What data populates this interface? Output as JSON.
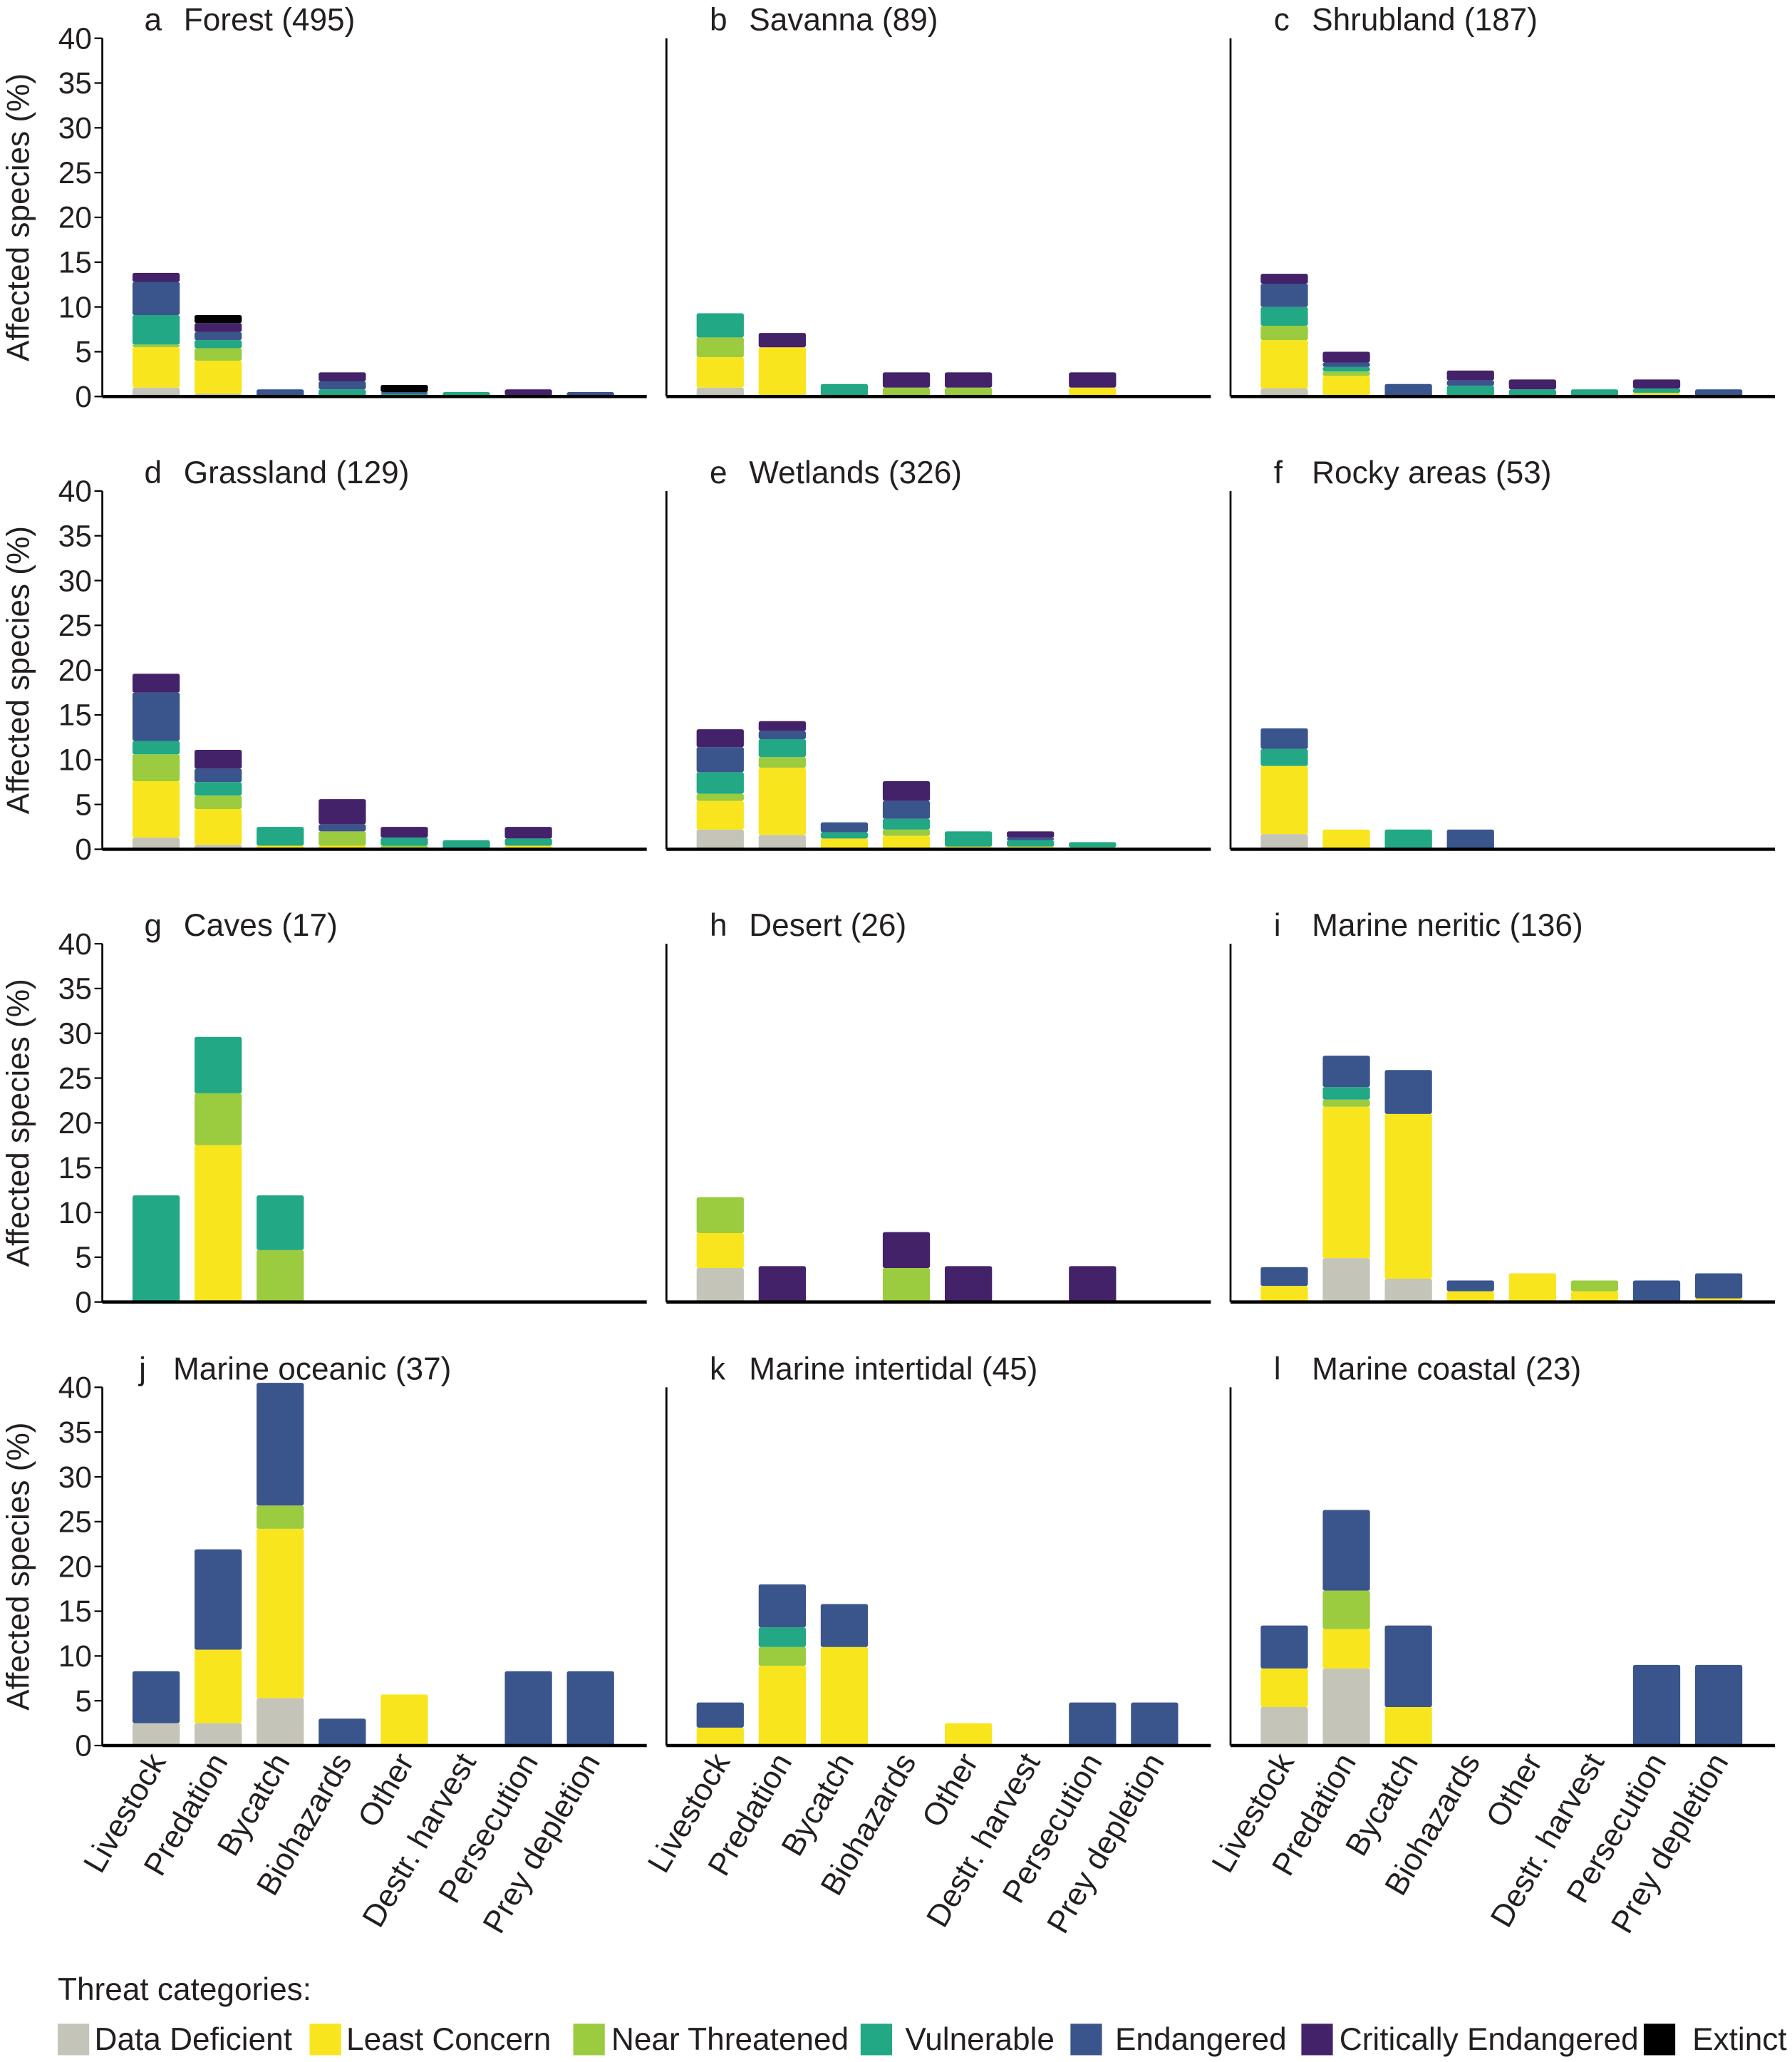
{
  "chart_data": {
    "type": "bar",
    "stacked": true,
    "ylabel": "Affected species (%)",
    "ylim": [
      0,
      40
    ],
    "yticks": [
      0,
      5,
      10,
      15,
      20,
      25,
      30,
      35,
      40
    ],
    "grid": false,
    "categories": [
      "Livestock",
      "Predation",
      "Bycatch",
      "Biohazards",
      "Other",
      "Destr. harvest",
      "Persecution",
      "Prey depletion"
    ],
    "series_names": [
      "Data Deficient",
      "Least Concern",
      "Near Threatened",
      "Vulnerable",
      "Endangered",
      "Critically Endangered",
      "Extinct"
    ],
    "colors": [
      "#c4c4b8",
      "#f9e51e",
      "#9bcb3f",
      "#22a884",
      "#3a548c",
      "#44226a",
      "#000000"
    ],
    "legend": {
      "title": "Threat categories:",
      "placement": "bottom"
    },
    "panels": [
      {
        "letter": "a",
        "title": "Forest (495)",
        "stacks": [
          [
            1,
            4.5,
            0.3,
            3.3,
            3.7,
            1,
            0
          ],
          [
            0.3,
            3.7,
            1.4,
            0.9,
            0.9,
            1,
            0.9
          ],
          [
            0,
            0,
            0,
            0,
            0.8,
            0,
            0
          ],
          [
            0,
            0,
            0,
            0.8,
            0.9,
            1,
            0
          ],
          [
            0,
            0,
            0,
            0.3,
            0.2,
            0,
            0.8
          ],
          [
            0,
            0,
            0,
            0.5,
            0,
            0,
            0
          ],
          [
            0,
            0.1,
            0,
            0,
            0,
            0.7,
            0
          ],
          [
            0,
            0,
            0,
            0,
            0.5,
            0,
            0
          ]
        ]
      },
      {
        "letter": "b",
        "title": "Savanna (89)",
        "stacks": [
          [
            1,
            3.4,
            2.2,
            2.7,
            0,
            0,
            0
          ],
          [
            0,
            5.5,
            0,
            0,
            0,
            1.6,
            0
          ],
          [
            0,
            0,
            0,
            1.4,
            0,
            0,
            0
          ],
          [
            0,
            0,
            1,
            0,
            0,
            1.7,
            0
          ],
          [
            0,
            0,
            1,
            0,
            0,
            1.7,
            0
          ],
          [
            0,
            0,
            0,
            0,
            0,
            0,
            0
          ],
          [
            0,
            1,
            0,
            0,
            0,
            1.7,
            0
          ],
          [
            0,
            0,
            0,
            0,
            0,
            0,
            0
          ]
        ]
      },
      {
        "letter": "c",
        "title": "Shrubland (187)",
        "stacks": [
          [
            0.9,
            5.4,
            1.6,
            2.1,
            2.6,
            1.1,
            0
          ],
          [
            0.1,
            2.2,
            0.5,
            0.5,
            0.5,
            1.2,
            0
          ],
          [
            0,
            0,
            0,
            0,
            1.4,
            0,
            0
          ],
          [
            0,
            0,
            0,
            1.2,
            0.6,
            1.1,
            0
          ],
          [
            0,
            0,
            0,
            0.8,
            0,
            1.1,
            0
          ],
          [
            0,
            0,
            0,
            0.8,
            0,
            0,
            0
          ],
          [
            0,
            0.4,
            0,
            0.5,
            0,
            1,
            0
          ],
          [
            0,
            0,
            0,
            0,
            0.8,
            0,
            0
          ]
        ]
      },
      {
        "letter": "d",
        "title": "Grassland (129)",
        "stacks": [
          [
            1.3,
            6.3,
            3,
            1.5,
            5.4,
            2.1,
            0
          ],
          [
            0.5,
            4,
            1.5,
            1.5,
            1.5,
            2.1,
            0
          ],
          [
            0,
            0.4,
            0,
            2.1,
            0,
            0,
            0
          ],
          [
            0,
            0.4,
            1.6,
            0,
            0.8,
            2.8,
            0
          ],
          [
            0,
            0,
            0.4,
            0.9,
            0,
            1.2,
            0
          ],
          [
            0,
            0,
            0,
            1,
            0,
            0,
            0
          ],
          [
            0,
            0.4,
            0,
            0.8,
            0,
            1.3,
            0
          ],
          [
            0,
            0,
            0,
            0,
            0,
            0,
            0
          ]
        ]
      },
      {
        "letter": "e",
        "title": "Wetlands (326)",
        "stacks": [
          [
            2.2,
            3.2,
            0.8,
            2.4,
            2.8,
            2,
            0
          ],
          [
            1.6,
            7.5,
            1.2,
            2,
            0.9,
            1.1,
            0
          ],
          [
            0,
            1.2,
            0,
            0.7,
            1.1,
            0,
            0
          ],
          [
            0,
            1.5,
            0.7,
            1.2,
            2,
            2.2,
            0
          ],
          [
            0,
            0.3,
            0,
            1.7,
            0,
            0,
            0
          ],
          [
            0,
            0.3,
            0,
            0.7,
            0.3,
            0.7,
            0
          ],
          [
            0,
            0.2,
            0,
            0.6,
            0,
            0,
            0
          ],
          [
            0,
            0,
            0,
            0,
            0,
            0,
            0
          ]
        ]
      },
      {
        "letter": "f",
        "title": "Rocky areas (53)",
        "stacks": [
          [
            1.7,
            7.6,
            0,
            1.9,
            2.3,
            0,
            0
          ],
          [
            0,
            2.2,
            0,
            0,
            0,
            0,
            0
          ],
          [
            0,
            0,
            0,
            2.2,
            0,
            0,
            0
          ],
          [
            0,
            0,
            0,
            0,
            2.2,
            0,
            0
          ],
          [
            0,
            0,
            0,
            0,
            0,
            0,
            0
          ],
          [
            0,
            0,
            0,
            0,
            0,
            0,
            0
          ],
          [
            0,
            0,
            0,
            0,
            0,
            0,
            0
          ],
          [
            0,
            0,
            0,
            0,
            0,
            0,
            0
          ]
        ]
      },
      {
        "letter": "g",
        "title": "Caves (17)",
        "stacks": [
          [
            0,
            0,
            0,
            11.9,
            0,
            0,
            0
          ],
          [
            0,
            17.5,
            5.8,
            6.3,
            0,
            0,
            0
          ],
          [
            0,
            0,
            5.8,
            6.1,
            0,
            0,
            0
          ],
          [
            0,
            0,
            0,
            0,
            0,
            0,
            0
          ],
          [
            0,
            0,
            0,
            0,
            0,
            0,
            0
          ],
          [
            0,
            0,
            0,
            0,
            0,
            0,
            0
          ],
          [
            0,
            0,
            0,
            0,
            0,
            0,
            0
          ],
          [
            0,
            0,
            0,
            0,
            0,
            0,
            0
          ]
        ]
      },
      {
        "letter": "h",
        "title": "Desert (26)",
        "stacks": [
          [
            3.8,
            3.9,
            4,
            0,
            0,
            0,
            0
          ],
          [
            0,
            0,
            0,
            0,
            0,
            4,
            0
          ],
          [
            0,
            0,
            0,
            0,
            0,
            0,
            0
          ],
          [
            0,
            0,
            3.8,
            0,
            0,
            4,
            0
          ],
          [
            0,
            0,
            0,
            0,
            0,
            4,
            0
          ],
          [
            0,
            0,
            0,
            0,
            0,
            0,
            0
          ],
          [
            0,
            0,
            0,
            0,
            0,
            4,
            0
          ],
          [
            0,
            0,
            0,
            0,
            0,
            0,
            0
          ]
        ]
      },
      {
        "letter": "i",
        "title": "Marine neritic (136)",
        "stacks": [
          [
            0,
            1.8,
            0,
            0,
            2.1,
            0,
            0
          ],
          [
            4.9,
            16.9,
            0.8,
            1.4,
            3.5,
            0,
            0
          ],
          [
            2.6,
            18.4,
            0,
            0,
            4.9,
            0,
            0
          ],
          [
            0,
            1.2,
            0,
            0,
            1.2,
            0,
            0
          ],
          [
            0,
            3.2,
            0,
            0,
            0,
            0,
            0
          ],
          [
            0,
            1.2,
            1.2,
            0,
            0,
            0,
            0
          ],
          [
            0,
            0,
            0,
            0,
            2.4,
            0,
            0
          ],
          [
            0,
            0.4,
            0,
            0,
            2.8,
            0,
            0
          ]
        ]
      },
      {
        "letter": "j",
        "title": "Marine oceanic (37)",
        "stacks": [
          [
            2.5,
            0,
            0,
            0,
            5.8,
            0,
            0
          ],
          [
            2.5,
            8.2,
            0,
            0,
            11.2,
            0,
            0
          ],
          [
            5.3,
            18.9,
            2.6,
            0,
            13.7,
            0,
            0
          ],
          [
            0,
            0,
            0,
            0,
            3,
            0,
            0
          ],
          [
            0,
            5.7,
            0,
            0,
            0,
            0,
            0
          ],
          [
            0,
            0,
            0,
            0,
            0,
            0,
            0
          ],
          [
            0,
            0,
            0,
            0,
            8.3,
            0,
            0
          ],
          [
            0,
            0,
            0,
            0,
            8.3,
            0,
            0
          ]
        ]
      },
      {
        "letter": "k",
        "title": "Marine intertidal (45)",
        "stacks": [
          [
            0,
            2,
            0,
            0,
            2.8,
            0,
            0
          ],
          [
            0,
            8.9,
            2.1,
            2.2,
            4.8,
            0,
            0
          ],
          [
            0,
            11,
            0,
            0,
            4.8,
            0,
            0
          ],
          [
            0,
            0,
            0,
            0,
            0,
            0,
            0
          ],
          [
            0,
            2.5,
            0,
            0,
            0,
            0,
            0
          ],
          [
            0,
            0,
            0,
            0,
            0,
            0,
            0
          ],
          [
            0,
            0,
            0,
            0,
            4.8,
            0,
            0
          ],
          [
            0,
            0,
            0,
            0,
            4.8,
            0,
            0
          ]
        ]
      },
      {
        "letter": "l",
        "title": "Marine coastal (23)",
        "stacks": [
          [
            4.3,
            4.3,
            0,
            0,
            4.8,
            0,
            0
          ],
          [
            8.6,
            4.4,
            4.3,
            0,
            9,
            0,
            0
          ],
          [
            0,
            4.3,
            0,
            0,
            9.1,
            0,
            0
          ],
          [
            0,
            0,
            0,
            0,
            0,
            0,
            0
          ],
          [
            0,
            0,
            0,
            0,
            0,
            0,
            0
          ],
          [
            0,
            0,
            0,
            0,
            0,
            0,
            0
          ],
          [
            0,
            0,
            0,
            0,
            9,
            0,
            0
          ],
          [
            0,
            0,
            0,
            0,
            9,
            0,
            0
          ]
        ]
      }
    ]
  }
}
